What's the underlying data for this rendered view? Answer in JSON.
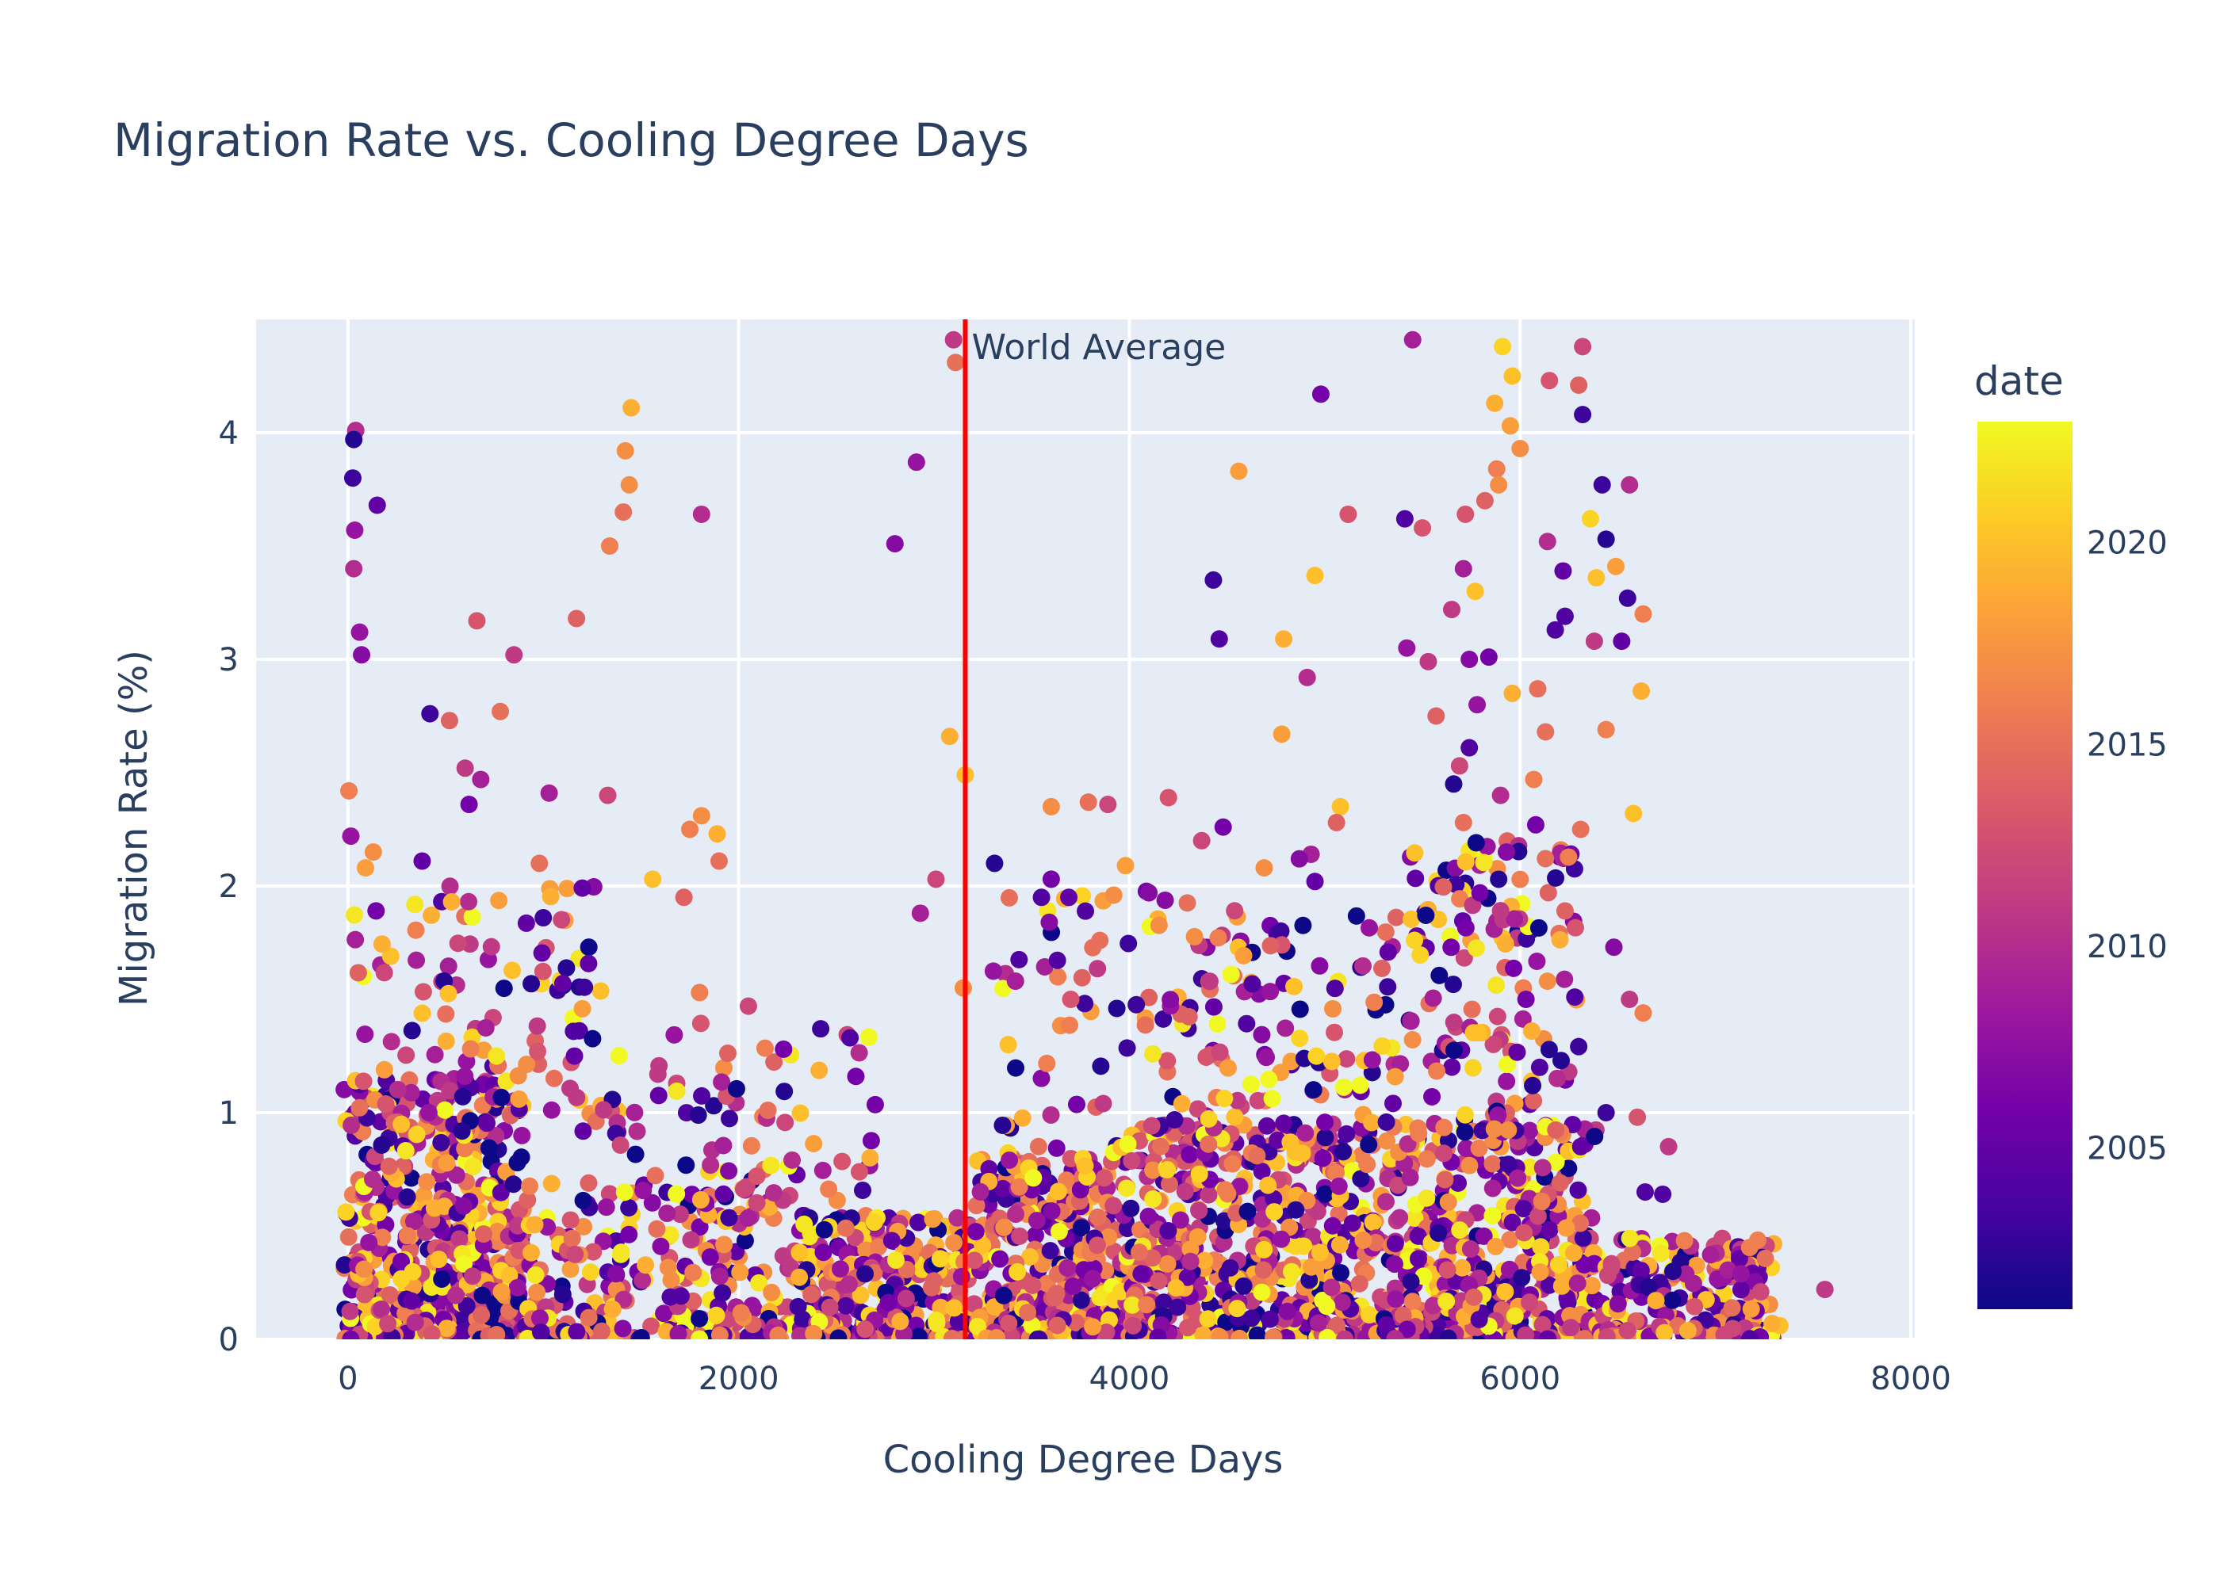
{
  "chart_data": {
    "type": "scatter",
    "title": "Migration Rate vs. Cooling Degree Days",
    "xlabel": "Cooling Degree Days",
    "ylabel": "Migration Rate (%)",
    "xlim": [
      -470,
      8020
    ],
    "ylim": [
      0,
      4.5
    ],
    "xticks": [
      0,
      2000,
      4000,
      6000,
      8000
    ],
    "xtick_labels": [
      "0",
      "2000",
      "4000",
      "6000",
      "8000"
    ],
    "yticks": [
      0,
      1,
      2,
      3,
      4
    ],
    "ytick_labels": [
      "0",
      "1",
      "2",
      "3",
      "4"
    ],
    "grid": true,
    "colorbar": {
      "title": "date",
      "range": [
        2001,
        2023
      ],
      "ticks": [
        2005,
        2010,
        2015,
        2020
      ],
      "tick_labels": [
        "2005",
        "2010",
        "2015",
        "2020"
      ],
      "colorscale": [
        "#0d0887",
        "#46039f",
        "#7201a8",
        "#9c179e",
        "#bd3786",
        "#d8576b",
        "#ed7953",
        "#fb9f3a",
        "#fdca26",
        "#f0f921"
      ]
    },
    "reference_line": {
      "x": 3160,
      "label": "World Average",
      "color": "#ff0000"
    },
    "series": [
      {
        "columns": [
          "cooling_degree_days",
          "migration_rate",
          "date"
        ],
        "points": [
          [
            40,
            4.01,
            2010
          ],
          [
            30,
            3.97,
            2002
          ],
          [
            25,
            3.8,
            2003
          ],
          [
            35,
            3.57,
            2008
          ],
          [
            150,
            3.68,
            2005
          ],
          [
            30,
            3.4,
            2010
          ],
          [
            60,
            3.12,
            2008
          ],
          [
            70,
            3.02,
            2007
          ],
          [
            15,
            2.22,
            2008
          ],
          [
            5,
            2.42,
            2016
          ],
          [
            90,
            2.08,
            2018
          ],
          [
            130,
            2.15,
            2017
          ],
          [
            420,
            2.76,
            2003
          ],
          [
            520,
            2.73,
            2014
          ],
          [
            600,
            2.52,
            2011
          ],
          [
            680,
            2.47,
            2009
          ],
          [
            620,
            2.36,
            2006
          ],
          [
            780,
            2.77,
            2015
          ],
          [
            660,
            3.17,
            2013
          ],
          [
            850,
            3.02,
            2011
          ],
          [
            1170,
            3.18,
            2014
          ],
          [
            1330,
            2.4,
            2012
          ],
          [
            1030,
            2.41,
            2009
          ],
          [
            980,
            2.1,
            2015
          ],
          [
            380,
            2.11,
            2005
          ],
          [
            1000,
            1.86,
            2003
          ],
          [
            1100,
            1.57,
            2005
          ],
          [
            1340,
            3.5,
            2016
          ],
          [
            1420,
            3.92,
            2017
          ],
          [
            1450,
            4.11,
            2019
          ],
          [
            1440,
            3.77,
            2017
          ],
          [
            1410,
            3.65,
            2015
          ],
          [
            1810,
            3.64,
            2010
          ],
          [
            1750,
            2.25,
            2016
          ],
          [
            1810,
            2.31,
            2017
          ],
          [
            1890,
            2.23,
            2019
          ],
          [
            1560,
            2.03,
            2020
          ],
          [
            1720,
            1.95,
            2014
          ],
          [
            1800,
            1.53,
            2016
          ],
          [
            1900,
            2.11,
            2015
          ],
          [
            2050,
            1.47,
            2012
          ],
          [
            2230,
            1.28,
            2006
          ],
          [
            2420,
            1.37,
            2003
          ],
          [
            2570,
            1.33,
            2004
          ],
          [
            2600,
            1.16,
            2006
          ],
          [
            2800,
            3.51,
            2007
          ],
          [
            2910,
            3.87,
            2008
          ],
          [
            3100,
            4.41,
            2011
          ],
          [
            3110,
            4.31,
            2015
          ],
          [
            3080,
            2.66,
            2019
          ],
          [
            3160,
            2.49,
            2020
          ],
          [
            3010,
            2.03,
            2012
          ],
          [
            2930,
            1.88,
            2009
          ],
          [
            3150,
            1.55,
            2017
          ],
          [
            3310,
            2.1,
            2002
          ],
          [
            3380,
            1.3,
            2020
          ],
          [
            3600,
            2.35,
            2017
          ],
          [
            3600,
            2.03,
            2006
          ],
          [
            3550,
            1.95,
            2004
          ],
          [
            3590,
            1.84,
            2007
          ],
          [
            3700,
            1.5,
            2013
          ],
          [
            3690,
            1.95,
            2005
          ],
          [
            3890,
            2.36,
            2012
          ],
          [
            3790,
            2.37,
            2015
          ],
          [
            3920,
            1.96,
            2017
          ],
          [
            3980,
            2.09,
            2018
          ],
          [
            4100,
            1.97,
            2007
          ],
          [
            4200,
            2.39,
            2013
          ],
          [
            4370,
            2.2,
            2012
          ],
          [
            4480,
            2.26,
            2006
          ],
          [
            4430,
            3.35,
            2003
          ],
          [
            4460,
            3.09,
            2004
          ],
          [
            4560,
            3.83,
            2018
          ],
          [
            4790,
            3.09,
            2019
          ],
          [
            4780,
            2.67,
            2018
          ],
          [
            4950,
            3.37,
            2020
          ],
          [
            4980,
            4.17,
            2006
          ],
          [
            5120,
            3.64,
            2013
          ],
          [
            5450,
            4.41,
            2009
          ],
          [
            5410,
            3.62,
            2004
          ],
          [
            5500,
            3.58,
            2013
          ],
          [
            5420,
            3.05,
            2008
          ],
          [
            5530,
            2.99,
            2011
          ],
          [
            5570,
            2.75,
            2014
          ],
          [
            5080,
            2.35,
            2020
          ],
          [
            5060,
            2.28,
            2014
          ],
          [
            4930,
            2.14,
            2009
          ],
          [
            4870,
            2.12,
            2007
          ],
          [
            4950,
            2.02,
            2005
          ],
          [
            4690,
            2.08,
            2017
          ],
          [
            4910,
            2.92,
            2010
          ],
          [
            5770,
            3.3,
            2020
          ],
          [
            5880,
            3.84,
            2016
          ],
          [
            5890,
            3.77,
            2017
          ],
          [
            5950,
            4.03,
            2018
          ],
          [
            5960,
            4.25,
            2020
          ],
          [
            5910,
            4.38,
            2021
          ],
          [
            5870,
            4.13,
            2019
          ],
          [
            6000,
            3.93,
            2017
          ],
          [
            6150,
            4.23,
            2013
          ],
          [
            6300,
            4.21,
            2014
          ],
          [
            6320,
            4.38,
            2012
          ],
          [
            6320,
            4.08,
            2003
          ],
          [
            6420,
            3.77,
            2003
          ],
          [
            6360,
            3.62,
            2021
          ],
          [
            6440,
            3.53,
            2002
          ],
          [
            6560,
            3.77,
            2010
          ],
          [
            6140,
            3.52,
            2010
          ],
          [
            6220,
            3.39,
            2005
          ],
          [
            6390,
            3.36,
            2020
          ],
          [
            6490,
            3.41,
            2018
          ],
          [
            6550,
            3.27,
            2003
          ],
          [
            6630,
            3.2,
            2016
          ],
          [
            6620,
            2.86,
            2019
          ],
          [
            6230,
            3.19,
            2004
          ],
          [
            6180,
            3.13,
            2004
          ],
          [
            6380,
            3.08,
            2011
          ],
          [
            6520,
            3.08,
            2005
          ],
          [
            5740,
            3.0,
            2007
          ],
          [
            5650,
            3.22,
            2011
          ],
          [
            5710,
            3.4,
            2009
          ],
          [
            5720,
            3.64,
            2013
          ],
          [
            5820,
            3.7,
            2014
          ],
          [
            5840,
            3.01,
            2006
          ],
          [
            5780,
            2.8,
            2008
          ],
          [
            5740,
            2.61,
            2004
          ],
          [
            5690,
            2.53,
            2012
          ],
          [
            5660,
            2.45,
            2002
          ],
          [
            5710,
            2.28,
            2015
          ],
          [
            5900,
            2.4,
            2010
          ],
          [
            5930,
            2.15,
            2007
          ],
          [
            6070,
            2.47,
            2016
          ],
          [
            6080,
            2.27,
            2006
          ],
          [
            6130,
            2.68,
            2015
          ],
          [
            6440,
            2.69,
            2016
          ],
          [
            6310,
            2.25,
            2015
          ],
          [
            6580,
            2.32,
            2020
          ],
          [
            5960,
            2.85,
            2019
          ],
          [
            6090,
            2.87,
            2015
          ],
          [
            6230,
            1.89,
            2014
          ],
          [
            6480,
            1.73,
            2007
          ],
          [
            6560,
            1.5,
            2011
          ],
          [
            6630,
            1.44,
            2016
          ],
          [
            6280,
            1.51,
            2004
          ],
          [
            6030,
            1.5,
            2006
          ],
          [
            6140,
            1.58,
            2017
          ],
          [
            6060,
            1.36,
            2019
          ],
          [
            6100,
            1.2,
            2004
          ],
          [
            6210,
            1.23,
            2002
          ],
          [
            6310,
            0.85,
            2005
          ],
          [
            6440,
            1.0,
            2003
          ],
          [
            6600,
            0.98,
            2013
          ],
          [
            6760,
            0.85,
            2011
          ],
          [
            6730,
            0.64,
            2004
          ],
          [
            6640,
            0.65,
            2004
          ],
          [
            7560,
            0.22,
            2011
          ],
          [
            7330,
            0.06,
            2020
          ],
          [
            7290,
            0.07,
            2019
          ]
        ]
      }
    ]
  }
}
